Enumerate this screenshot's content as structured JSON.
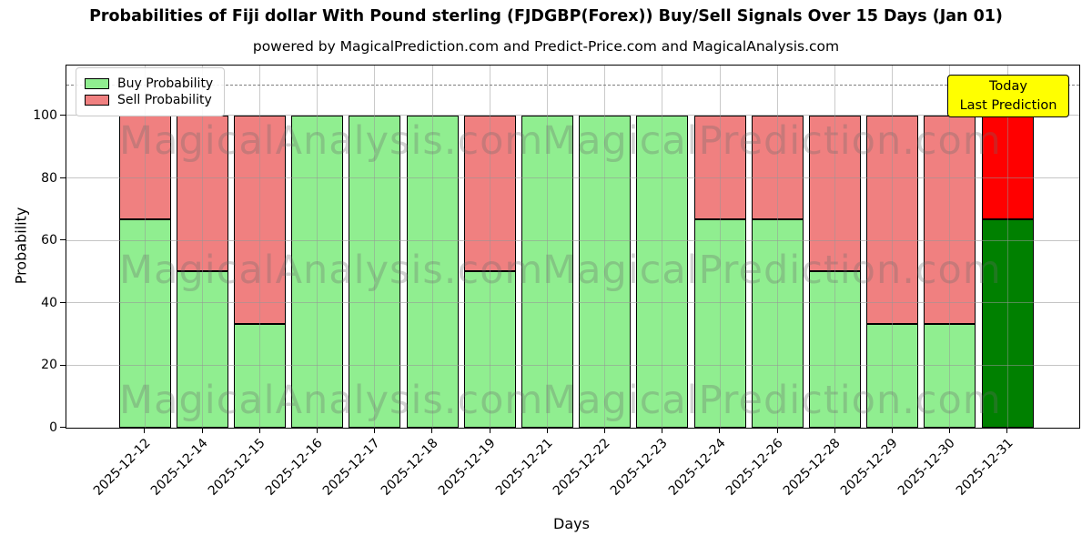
{
  "chart_data": {
    "type": "bar",
    "stacked": true,
    "title": "Probabilities of Fiji dollar With Pound sterling (FJDGBP(Forex)) Buy/Sell Signals Over 15 Days (Jan 01)",
    "subtitle": "powered by MagicalPrediction.com and Predict-Price.com and MagicalAnalysis.com",
    "xlabel": "Days",
    "ylabel": "Probability",
    "categories": [
      "2025-12-12",
      "2025-12-14",
      "2025-12-15",
      "2025-12-16",
      "2025-12-17",
      "2025-12-18",
      "2025-12-19",
      "2025-12-21",
      "2025-12-22",
      "2025-12-23",
      "2025-12-24",
      "2025-12-26",
      "2025-12-28",
      "2025-12-29",
      "2025-12-30",
      "2025-12-31"
    ],
    "series": [
      {
        "name": "Buy Probability",
        "color": "#90ee90",
        "values": [
          66.67,
          50,
          33.33,
          100,
          100,
          100,
          50,
          100,
          100,
          100,
          66.67,
          66.67,
          50,
          33.33,
          33.33,
          66.67
        ]
      },
      {
        "name": "Sell Probability",
        "color": "#f08080",
        "values": [
          33.33,
          50,
          66.67,
          0,
          0,
          0,
          50,
          0,
          0,
          0,
          33.33,
          33.33,
          50,
          66.67,
          66.67,
          33.33
        ]
      }
    ],
    "today_bar": {
      "index": 15,
      "buy_color": "#008000",
      "sell_color": "#ff0000"
    },
    "ylim": [
      0,
      116
    ],
    "yticks": [
      0,
      20,
      40,
      60,
      80,
      100
    ],
    "grid": true,
    "grid_on_top_of_bars": true,
    "dashed_guide_y": 110,
    "legend_position": "top-left",
    "annotation_box": {
      "line1": "Today",
      "line2": "Last Prediction",
      "bg_color": "#ffff00"
    },
    "watermarks": {
      "left": "MagicalAnalysis.com",
      "right": "MagicalPrediction.com"
    }
  }
}
